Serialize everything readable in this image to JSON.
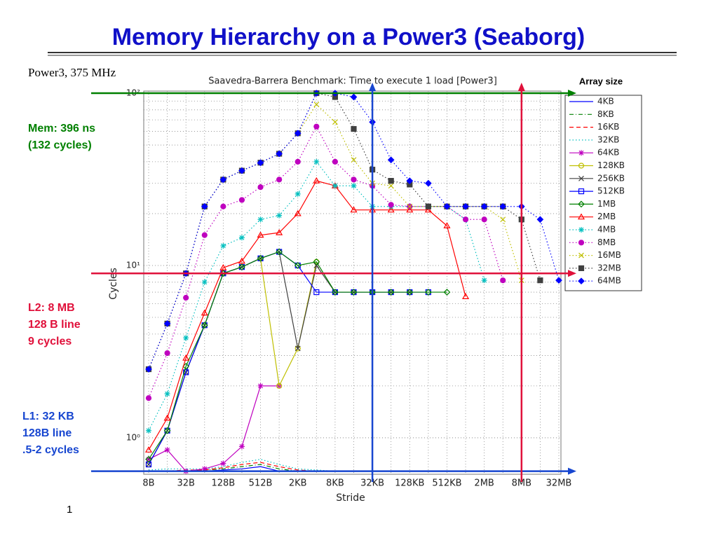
{
  "slide": {
    "title": "Memory Hierarchy on a Power3 (Seaborg)",
    "subtitle": "Power3, 375 MHz",
    "page_number": "1"
  },
  "chart_data": {
    "type": "line",
    "title": "Saavedra-Barrera Benchmark: Time to execute 1 load [Power3]",
    "x_label": "Stride",
    "y_label": "Cycles",
    "y_scale": "log",
    "grid": true,
    "legend_title": "Array size",
    "legend_position": "right",
    "categories": [
      "8B",
      null,
      "32B",
      null,
      "128B",
      null,
      "512B",
      null,
      "2KB",
      null,
      "8KB",
      null,
      "32KB",
      null,
      "128KB",
      null,
      "512KB",
      null,
      "2MB",
      null,
      "8MB",
      null,
      "32MB"
    ],
    "ylim": [
      0.62,
      100
    ],
    "yticks": [
      {
        "value": 1,
        "label": "10⁰"
      },
      {
        "value": 10,
        "label": "10¹"
      },
      {
        "value": 100,
        "label": "10²"
      }
    ],
    "yticks_minor": [
      2,
      3,
      4,
      5,
      6,
      7,
      8,
      9,
      20,
      30,
      40,
      50,
      60,
      70,
      80,
      90
    ],
    "series": [
      {
        "name": "4KB",
        "color": "#0000ff",
        "line_style": "solid",
        "marker": "none",
        "values": [
          0.64,
          0.64,
          0.64,
          0.64,
          0.65,
          0.66,
          0.68,
          0.64,
          0.64,
          null,
          null,
          null,
          null,
          null,
          null,
          null,
          null,
          null,
          null,
          null,
          null,
          null,
          null
        ]
      },
      {
        "name": "8KB",
        "color": "#008000",
        "line_style": "dashdot",
        "marker": "none",
        "values": [
          0.64,
          0.64,
          0.64,
          0.65,
          0.66,
          0.68,
          0.7,
          0.66,
          0.64,
          0.64,
          null,
          null,
          null,
          null,
          null,
          null,
          null,
          null,
          null,
          null,
          null,
          null,
          null
        ]
      },
      {
        "name": "16KB",
        "color": "#ff0000",
        "line_style": "dashed",
        "marker": "none",
        "values": [
          0.64,
          0.64,
          0.65,
          0.65,
          0.67,
          0.7,
          0.72,
          0.68,
          0.65,
          0.64,
          0.64,
          null,
          null,
          null,
          null,
          null,
          null,
          null,
          null,
          null,
          null,
          null,
          null
        ]
      },
      {
        "name": "32KB",
        "color": "#00bfbf",
        "line_style": "dotted",
        "marker": "none",
        "values": [
          0.65,
          0.66,
          0.66,
          0.66,
          0.68,
          0.72,
          0.75,
          0.7,
          0.66,
          0.65,
          0.64,
          0.64,
          null,
          null,
          null,
          null,
          null,
          null,
          null,
          null,
          null,
          null,
          null
        ]
      },
      {
        "name": "64KB",
        "color": "#bf00bf",
        "line_style": "solid",
        "marker": "star",
        "values": [
          0.75,
          0.85,
          0.64,
          0.66,
          0.71,
          0.89,
          2.0,
          2.0,
          null,
          null,
          null,
          null,
          null,
          null,
          null,
          null,
          null,
          null,
          null,
          null,
          null,
          null,
          null
        ]
      },
      {
        "name": "128KB",
        "color": "#bfbf00",
        "line_style": "solid",
        "marker": "circle-open",
        "values": [
          0.7,
          1.1,
          2.4,
          4.5,
          9,
          9.8,
          11,
          2.0,
          3.3,
          10.5,
          null,
          null,
          null,
          null,
          null,
          null,
          null,
          null,
          null,
          null,
          null,
          null,
          null
        ]
      },
      {
        "name": "256KB",
        "color": "#404040",
        "line_style": "solid",
        "marker": "x",
        "values": [
          0.7,
          1.1,
          2.4,
          4.5,
          9,
          9.8,
          11,
          12,
          3.3,
          10,
          7,
          7,
          7,
          7,
          7,
          null,
          null,
          null,
          null,
          null,
          null,
          null,
          null
        ]
      },
      {
        "name": "512KB",
        "color": "#0000ff",
        "line_style": "solid",
        "marker": "square-open",
        "values": [
          0.7,
          1.1,
          2.4,
          4.5,
          9,
          9.8,
          11,
          12,
          10,
          7,
          7,
          7,
          7,
          7,
          7,
          7,
          null,
          null,
          null,
          null,
          null,
          null,
          null
        ]
      },
      {
        "name": "1MB",
        "color": "#008000",
        "line_style": "solid",
        "marker": "diamond-open",
        "values": [
          0.75,
          1.1,
          2.6,
          4.5,
          9,
          9.8,
          11,
          12,
          10,
          10.5,
          7,
          7,
          7,
          7,
          7,
          7,
          7,
          null,
          null,
          null,
          null,
          null,
          null
        ]
      },
      {
        "name": "2MB",
        "color": "#ff0000",
        "line_style": "solid",
        "marker": "triangle-open",
        "values": [
          0.85,
          1.3,
          2.9,
          5.3,
          9.7,
          10.6,
          15,
          15.5,
          20,
          31,
          29,
          21,
          21,
          21,
          21,
          21,
          17,
          6.6,
          null,
          null,
          null,
          null,
          null
        ]
      },
      {
        "name": "4MB",
        "color": "#00bfbf",
        "line_style": "dotted",
        "marker": "star",
        "values": [
          1.1,
          1.8,
          3.8,
          8,
          13,
          14.5,
          18.5,
          19.5,
          26,
          40,
          29,
          29,
          22,
          22,
          22,
          22,
          22,
          18.5,
          8.2,
          null,
          null,
          null,
          null
        ]
      },
      {
        "name": "8MB",
        "color": "#bf00bf",
        "line_style": "dotted",
        "marker": "circle-filled",
        "values": [
          1.7,
          3.1,
          6.5,
          15,
          22,
          24,
          28.5,
          31.5,
          40,
          64,
          40,
          31.5,
          29,
          22.5,
          22,
          22,
          22,
          18.5,
          18.5,
          8.2,
          null,
          null,
          null
        ]
      },
      {
        "name": "16MB",
        "color": "#bfbf00",
        "line_style": "dotted",
        "marker": "x",
        "values": [
          2.5,
          4.6,
          9,
          22,
          31.5,
          35.5,
          39.5,
          44.5,
          58.5,
          86,
          68,
          41,
          30,
          29,
          22,
          22,
          22,
          22,
          22,
          18.5,
          8.2,
          null,
          null
        ]
      },
      {
        "name": "32MB",
        "color": "#404040",
        "line_style": "dotted",
        "marker": "square-filled",
        "values": [
          2.5,
          4.6,
          9,
          22,
          31.5,
          35.5,
          39.5,
          44.5,
          58.5,
          100,
          95,
          62,
          36,
          31,
          29.5,
          22,
          22,
          22,
          22,
          22,
          18.5,
          8.2,
          null
        ]
      },
      {
        "name": "64MB",
        "color": "#0000ff",
        "line_style": "dotted",
        "marker": "diamond-filled",
        "values": [
          2.5,
          4.6,
          9,
          22,
          31.5,
          35.5,
          39.5,
          44.5,
          58.5,
          100,
          100,
          95,
          68,
          41,
          31,
          30,
          22,
          22,
          22,
          22,
          22,
          18.5,
          8.2
        ]
      }
    ],
    "reference_lines": [
      {
        "axis": "y",
        "value": 100,
        "color": "#008000"
      },
      {
        "axis": "y",
        "value": 9,
        "color": "#e0103a"
      },
      {
        "axis": "y",
        "value": 0.64,
        "color": "#1746d0"
      },
      {
        "axis": "x",
        "category": "32KB",
        "color": "#1746d0"
      },
      {
        "axis": "x",
        "category": "8MB",
        "color": "#e0103a"
      }
    ],
    "annotations": [
      {
        "lines": [
          "Mem: 396 ns",
          "(132 cycles)"
        ],
        "color": "#008000"
      },
      {
        "lines": [
          "L2: 8 MB",
          "128 B line",
          "9 cycles"
        ],
        "color": "#e0103a"
      },
      {
        "lines": [
          "L1: 32 KB",
          "128B line",
          ".5-2 cycles"
        ],
        "color": "#1746d0"
      }
    ]
  }
}
